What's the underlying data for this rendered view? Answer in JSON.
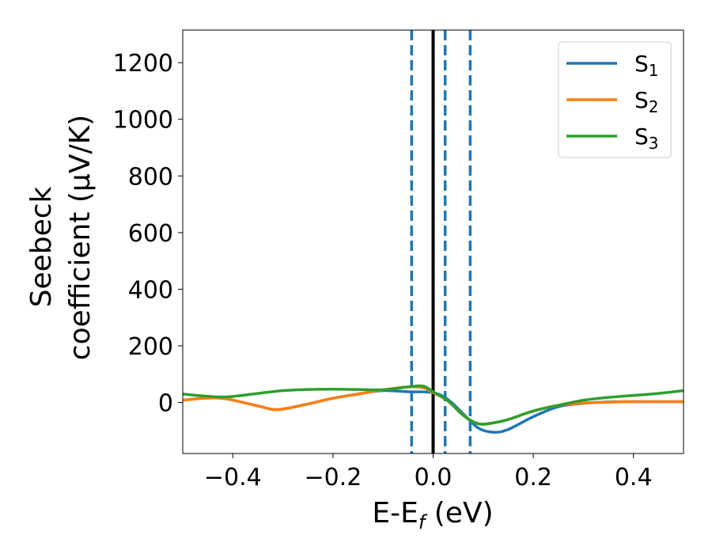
{
  "chart_data": {
    "type": "line",
    "xlabel": {
      "main": "E-E",
      "sub": "f",
      "suffix": " (eV)"
    },
    "ylabel": {
      "line1": "Seebeck",
      "line2": "coefficient  (μV/K)"
    },
    "xlim": [
      -0.5,
      0.5
    ],
    "ylim": [
      -180,
      1315
    ],
    "x_ticks": [
      -0.4,
      -0.2,
      0.0,
      0.2,
      0.4
    ],
    "x_tick_labels": [
      "−0.4",
      "−0.2",
      "0.0",
      "0.2",
      "0.4"
    ],
    "y_ticks": [
      0,
      200,
      400,
      600,
      800,
      1000,
      1200
    ],
    "y_tick_labels": [
      "0",
      "200",
      "400",
      "600",
      "800",
      "1000",
      "1200"
    ],
    "legend_position": "top-right",
    "vlines": [
      {
        "x": 0.0,
        "style": "solid",
        "color": "#000000"
      },
      {
        "x": -0.043,
        "style": "dashed",
        "color": "#1f77b4"
      },
      {
        "x": 0.024,
        "style": "dashed",
        "color": "#1f77b4"
      },
      {
        "x": 0.074,
        "style": "dashed",
        "color": "#1f77b4"
      }
    ],
    "series": [
      {
        "name": "S",
        "sub": "1",
        "color": "#1f77b4",
        "x": [
          -0.5,
          -0.45,
          -0.41,
          -0.35,
          -0.31,
          -0.25,
          -0.2,
          -0.15,
          -0.1,
          -0.05,
          0.0,
          0.03,
          0.06,
          0.09,
          0.12,
          0.15,
          0.2,
          0.25,
          0.3,
          0.35,
          0.4,
          0.45,
          0.5
        ],
        "y": [
          8,
          16,
          12,
          -12,
          -25,
          -5,
          15,
          30,
          42,
          38,
          35,
          10,
          -40,
          -90,
          -105,
          -95,
          -50,
          -15,
          -3,
          2,
          3,
          3,
          3
        ]
      },
      {
        "name": "S",
        "sub": "2",
        "color": "#ff7f0e",
        "x": [
          -0.5,
          -0.45,
          -0.41,
          -0.35,
          -0.31,
          -0.25,
          -0.2,
          -0.15,
          -0.1,
          -0.05,
          -0.02,
          0.0,
          0.03,
          0.06,
          0.09,
          0.12,
          0.15,
          0.2,
          0.25,
          0.3,
          0.35,
          0.4,
          0.45,
          0.5
        ],
        "y": [
          8,
          16,
          12,
          -12,
          -25,
          -5,
          15,
          30,
          45,
          55,
          52,
          35,
          5,
          -45,
          -75,
          -72,
          -60,
          -30,
          -10,
          -2,
          1,
          3,
          3,
          3
        ]
      },
      {
        "name": "S",
        "sub": "3",
        "color": "#2ca02c",
        "x": [
          -0.5,
          -0.45,
          -0.41,
          -0.35,
          -0.3,
          -0.25,
          -0.2,
          -0.15,
          -0.1,
          -0.05,
          -0.02,
          0.0,
          0.03,
          0.06,
          0.09,
          0.12,
          0.15,
          0.2,
          0.25,
          0.3,
          0.35,
          0.4,
          0.45,
          0.5
        ],
        "y": [
          30,
          22,
          20,
          32,
          42,
          46,
          47,
          46,
          45,
          55,
          58,
          38,
          5,
          -45,
          -75,
          -72,
          -60,
          -30,
          -10,
          8,
          18,
          25,
          32,
          42
        ]
      }
    ]
  }
}
